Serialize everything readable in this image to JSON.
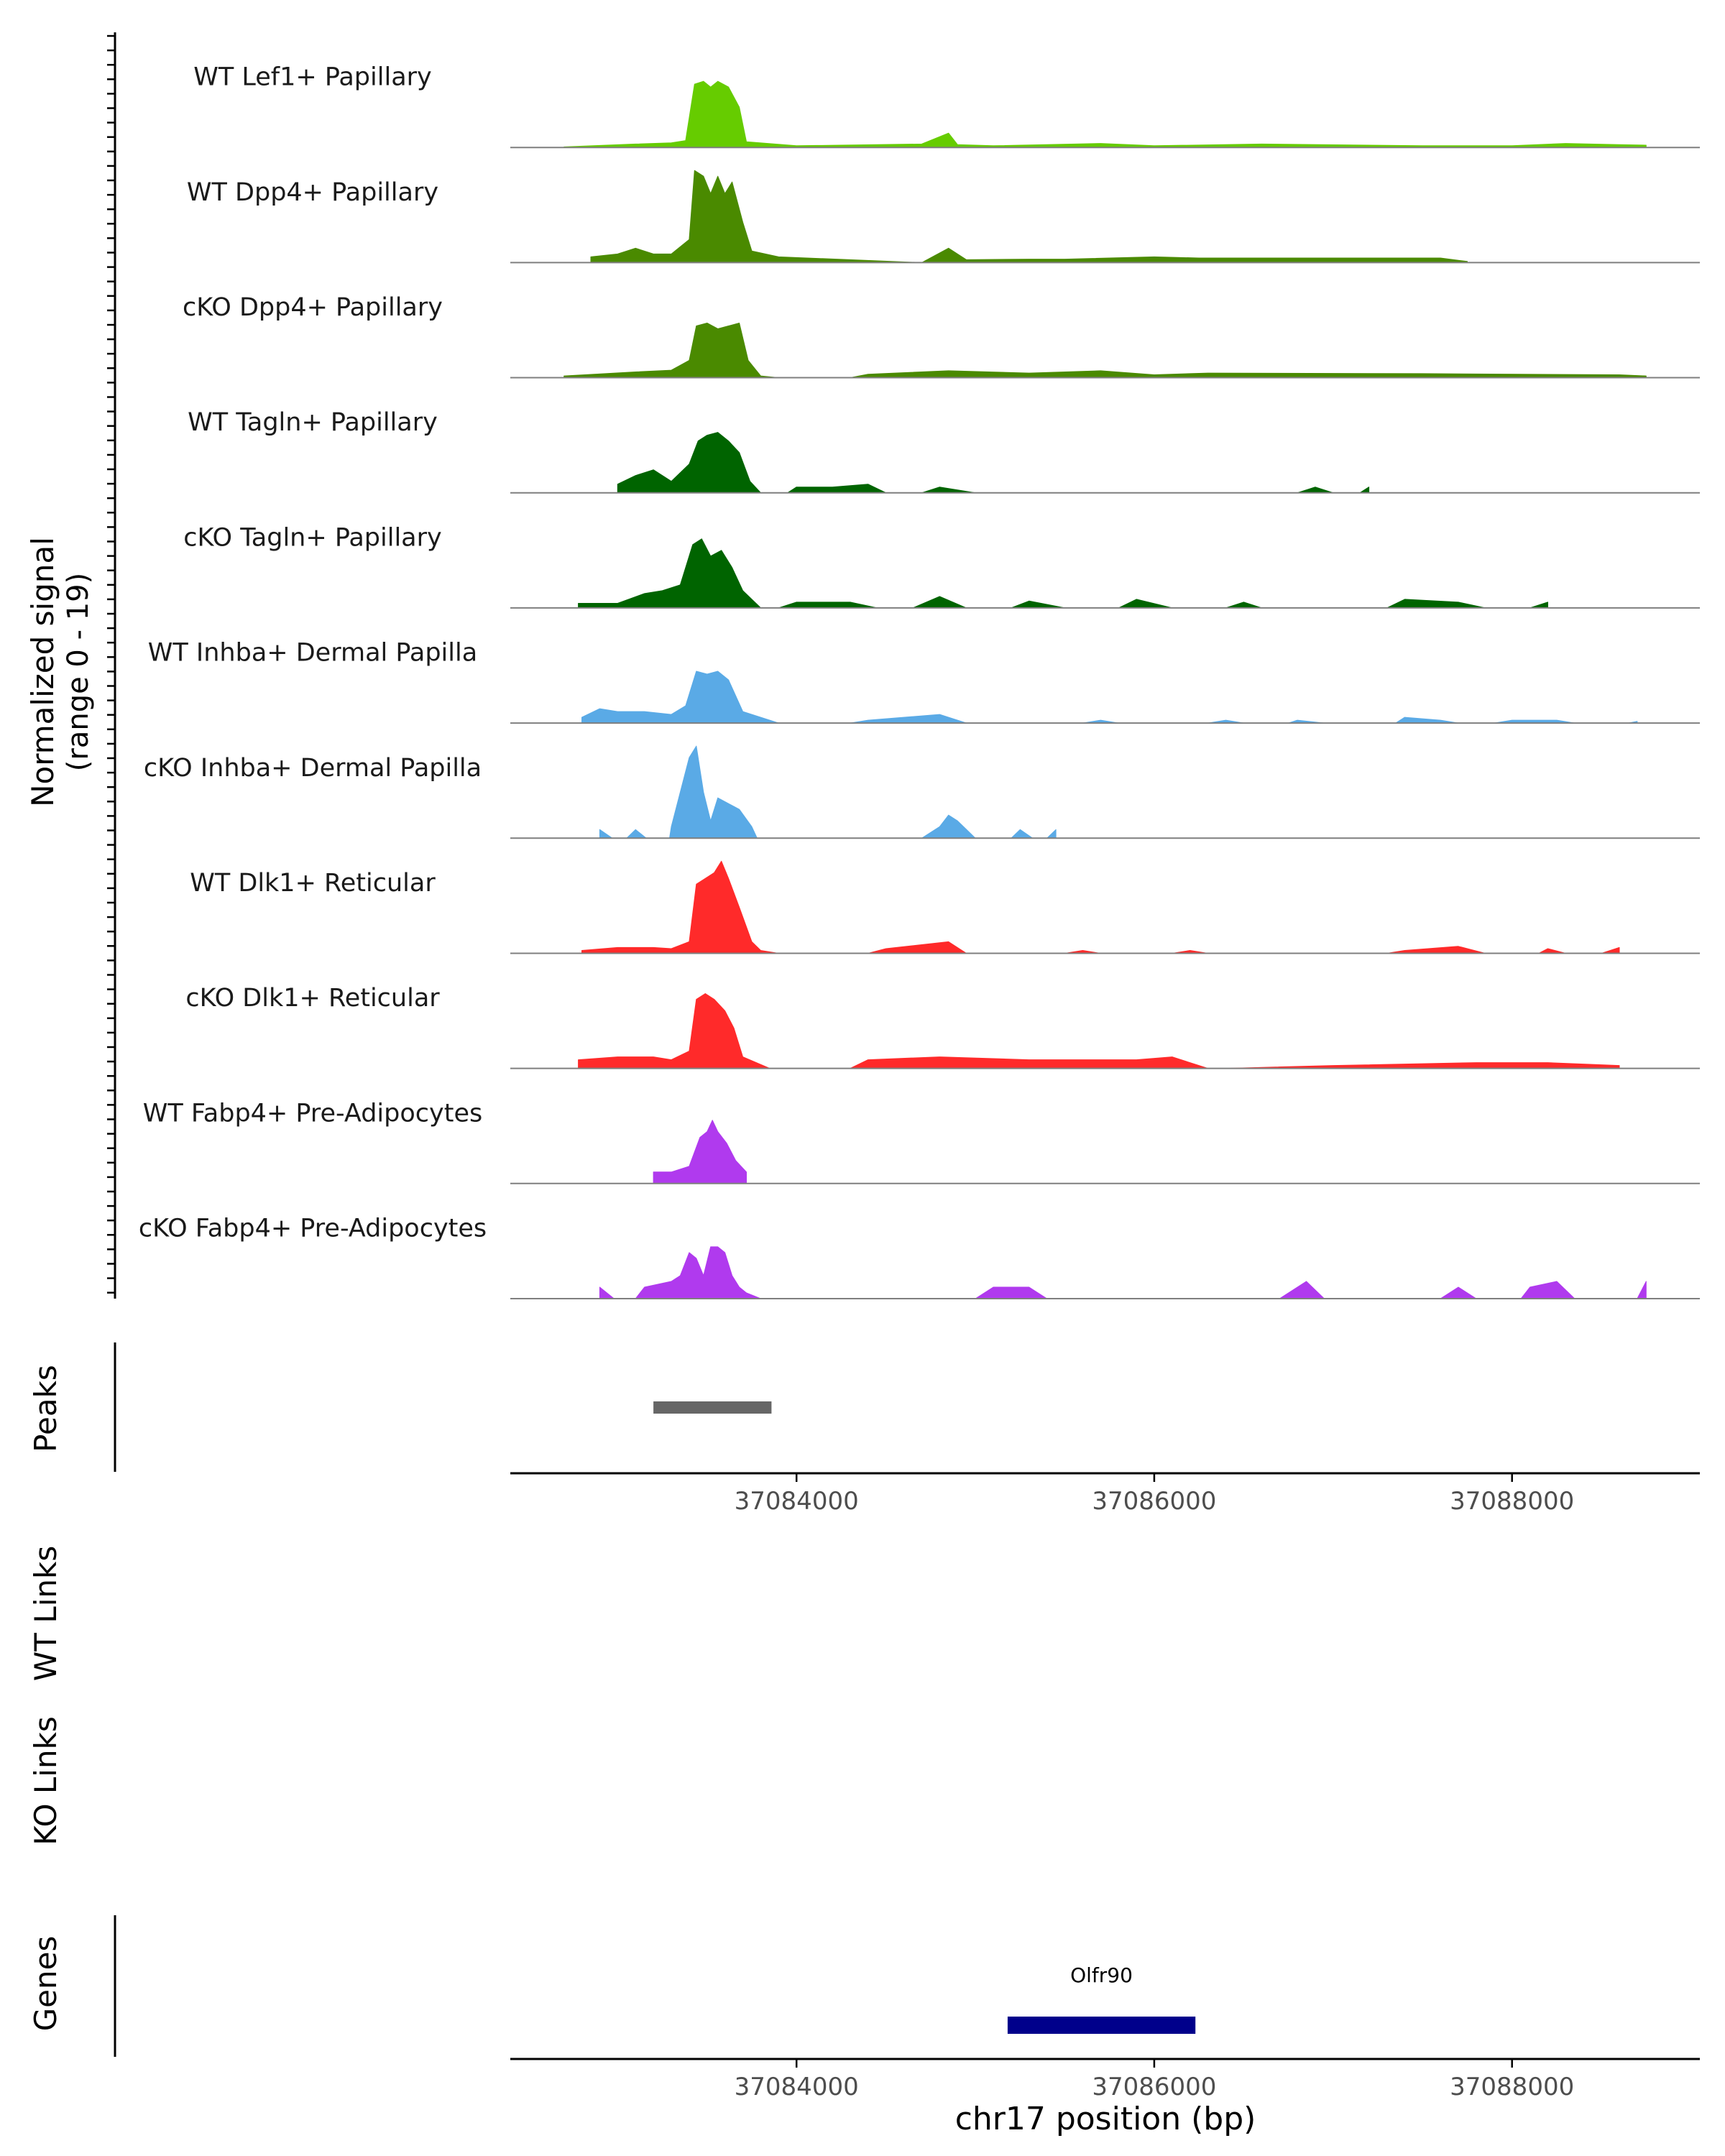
{
  "chart_data": {
    "type": "area",
    "title": "",
    "xlabel": "chr17 position (bp)",
    "xlim": [
      37082400,
      37089050
    ],
    "x_ticks": [
      37084000,
      37086000,
      37088000
    ],
    "x_tick_labels": [
      "37084000",
      "37086000",
      "37088000"
    ],
    "coverage_ylabel_line1": "Normalized signal",
    "coverage_ylabel_line2": "(range 0 - 19)",
    "ylim": [
      0,
      19
    ],
    "grid": false,
    "tracks": [
      {
        "name": "WT Lef1+ Papillary",
        "color": "#66CC00",
        "x": [
          37082700,
          37083100,
          37083300,
          37083380,
          37083430,
          37083480,
          37083520,
          37083560,
          37083620,
          37083680,
          37083720,
          37084000,
          37084700,
          37084850,
          37084900,
          37085100,
          37085700,
          37086000,
          37086600,
          37087500,
          37088000,
          37088300,
          37088600,
          37088750
        ],
        "values": [
          0.1,
          0.6,
          0.8,
          1.2,
          11,
          11.5,
          10.5,
          11.5,
          10.5,
          7,
          1,
          0.3,
          0.6,
          2.5,
          0.5,
          0.3,
          0.7,
          0.3,
          0.6,
          0.3,
          0.3,
          0.7,
          0.5,
          0.4
        ]
      },
      {
        "name": "WT Dpp4+ Papillary",
        "color": "#4A8A00",
        "x": [
          37082850,
          37083000,
          37083100,
          37083200,
          37083300,
          37083400,
          37083430,
          37083480,
          37083520,
          37083560,
          37083600,
          37083640,
          37083700,
          37083750,
          37083900,
          37084700,
          37084850,
          37084950,
          37085300,
          37085500,
          37086000,
          37086250,
          37087600,
          37087750
        ],
        "values": [
          1,
          1.5,
          2.5,
          1.5,
          1.5,
          4,
          16,
          15,
          12,
          15,
          12,
          14,
          7,
          2,
          1,
          0,
          2.5,
          0.5,
          0.6,
          0.6,
          1,
          0.8,
          0.8,
          0.2
        ]
      },
      {
        "name": "cKO Dpp4+ Papillary",
        "color": "#4A8A00",
        "x": [
          37082700,
          37083100,
          37083300,
          37083400,
          37083440,
          37083500,
          37083560,
          37083620,
          37083680,
          37083730,
          37083800,
          37084400,
          37084850,
          37085300,
          37085700,
          37086000,
          37086300,
          37087500,
          37088600,
          37088750
        ],
        "values": [
          0.3,
          1,
          1.3,
          3,
          9,
          9.5,
          8.5,
          9,
          9.5,
          3,
          0.3,
          0.6,
          1.2,
          0.8,
          1.2,
          0.5,
          0.8,
          0.7,
          0.5,
          0.3
        ],
        "gap_spans": [
          [
            37083900,
            37084300
          ]
        ]
      },
      {
        "name": "WT Tagln+ Papillary",
        "color": "#006400",
        "x": [
          37083000,
          37083100,
          37083200,
          37083300,
          37083400,
          37083450,
          37083500,
          37083560,
          37083620,
          37083680,
          37083740,
          37084000,
          37084200,
          37084400,
          37084800,
          37086900,
          37087200
        ],
        "values": [
          1.5,
          3,
          4,
          2,
          5,
          9,
          10,
          10.5,
          9,
          7,
          2,
          1,
          1,
          1.5,
          1,
          1,
          1
        ],
        "gap_spans": [
          [
            37083800,
            37083950
          ],
          [
            37084500,
            37084700
          ],
          [
            37085000,
            37086800
          ],
          [
            37087000,
            37087150
          ]
        ]
      },
      {
        "name": "cKO Tagln+ Papillary",
        "color": "#006400",
        "x": [
          37082780,
          37083000,
          37083150,
          37083250,
          37083350,
          37083420,
          37083470,
          37083520,
          37083580,
          37083640,
          37083700,
          37084000,
          37084300,
          37084800,
          37085300,
          37085900,
          37086500,
          37087400,
          37087700,
          37088200
        ],
        "values": [
          0.8,
          0.8,
          2.5,
          3,
          4,
          11,
          12,
          9,
          10,
          7,
          3,
          1,
          1,
          2,
          1.2,
          1.5,
          1,
          1.5,
          1,
          1
        ],
        "gap_spans": [
          [
            37083800,
            37083900
          ],
          [
            37084450,
            37084650
          ],
          [
            37084950,
            37085200
          ],
          [
            37085500,
            37085800
          ],
          [
            37086100,
            37086400
          ],
          [
            37086600,
            37087300
          ],
          [
            37087850,
            37088100
          ]
        ]
      },
      {
        "name": "WT Inhba+ Dermal Papilla",
        "color": "#5AAAE6",
        "x": [
          37082800,
          37082900,
          37083000,
          37083150,
          37083300,
          37083380,
          37083440,
          37083500,
          37083560,
          37083620,
          37083700,
          37083800,
          37084400,
          37084800,
          37085700,
          37086400,
          37086800,
          37087400,
          37087600,
          37088000,
          37088250,
          37088700
        ],
        "values": [
          1,
          2.5,
          2,
          2,
          1.5,
          3,
          9,
          8.5,
          9,
          7.5,
          2,
          1,
          0.5,
          1.5,
          0.5,
          0.5,
          0.5,
          1,
          0.5,
          0.5,
          0.5,
          0.3
        ],
        "gap_spans": [
          [
            37083900,
            37084300
          ],
          [
            37084950,
            37085600
          ],
          [
            37085800,
            37086300
          ],
          [
            37086500,
            37086750
          ],
          [
            37086950,
            37087350
          ],
          [
            37087700,
            37087900
          ],
          [
            37088350,
            37088650
          ]
        ]
      },
      {
        "name": "cKO Inhba+ Dermal Papilla",
        "color": "#5AAAE6",
        "x": [
          37082900,
          37083100,
          37083300,
          37083400,
          37083440,
          37083480,
          37083520,
          37083560,
          37083620,
          37083680,
          37083750,
          37084800,
          37084850,
          37084900,
          37085250,
          37085450
        ],
        "values": [
          1.5,
          1.5,
          2,
          14,
          16,
          8,
          3,
          7,
          6,
          5,
          2,
          2,
          4,
          3,
          1.5,
          1.5
        ],
        "gap_spans": [
          [
            37082970,
            37083050
          ],
          [
            37083160,
            37083290
          ],
          [
            37083780,
            37084700
          ],
          [
            37085000,
            37085200
          ],
          [
            37085320,
            37085400
          ]
        ]
      },
      {
        "name": "WT Dlk1+ Reticular",
        "color": "#FF2A2A",
        "x": [
          37082800,
          37083000,
          37083200,
          37083300,
          37083400,
          37083440,
          37083490,
          37083540,
          37083580,
          37083620,
          37083680,
          37083750,
          37083800,
          37084500,
          37084850,
          37085600,
          37086200,
          37087400,
          37087700,
          37088200,
          37088600
        ],
        "values": [
          0.5,
          1,
          1,
          0.8,
          2,
          12,
          13,
          14,
          16,
          13,
          8,
          2,
          0.5,
          0.8,
          2,
          0.5,
          0.5,
          0.5,
          1.2,
          0.8,
          1
        ],
        "gap_spans": [
          [
            37083900,
            37084400
          ],
          [
            37084950,
            37085500
          ],
          [
            37085700,
            37086100
          ],
          [
            37086300,
            37087300
          ],
          [
            37087850,
            37088150
          ],
          [
            37088300,
            37088500
          ]
        ]
      },
      {
        "name": "cKO Dlk1+ Reticular",
        "color": "#FF2A2A",
        "x": [
          37082780,
          37083000,
          37083200,
          37083300,
          37083400,
          37083440,
          37083490,
          37083540,
          37083600,
          37083650,
          37083700,
          37084400,
          37084800,
          37085300,
          37085900,
          37086100,
          37087000,
          37087800,
          37088200,
          37088600
        ],
        "values": [
          1.5,
          2,
          2,
          1.5,
          3,
          12,
          13,
          12,
          10,
          7,
          2,
          1.5,
          2,
          1.5,
          1.5,
          2,
          0.5,
          1,
          1,
          0.5
        ],
        "gap_spans": [
          [
            37083850,
            37084300
          ],
          [
            37086300,
            37086400
          ]
        ]
      },
      {
        "name": "WT Fabp4+ Pre-Adipocytes",
        "color": "#B03AEE",
        "x": [
          37083200,
          37083300,
          37083400,
          37083460,
          37083500,
          37083530,
          37083560,
          37083610,
          37083660,
          37083720
        ],
        "values": [
          2,
          2,
          3,
          8,
          9,
          11,
          9,
          7,
          4,
          2
        ]
      },
      {
        "name": "cKO Fabp4+ Pre-Adipocytes",
        "color": "#B03AEE",
        "x": [
          37082900,
          37083150,
          37083300,
          37083350,
          37083400,
          37083440,
          37083480,
          37083520,
          37083560,
          37083600,
          37083640,
          37083680,
          37083720,
          37085100,
          37085300,
          37086850,
          37087700,
          37088100,
          37088250,
          37088750
        ],
        "values": [
          2,
          2,
          3,
          4,
          8,
          7,
          4,
          9,
          9,
          8,
          4,
          2,
          1,
          2,
          2,
          3,
          2,
          2,
          3,
          3
        ],
        "gap_spans": [
          [
            37082980,
            37083100
          ],
          [
            37083800,
            37085000
          ],
          [
            37085400,
            37086700
          ],
          [
            37086950,
            37087600
          ],
          [
            37087800,
            37088050
          ],
          [
            37088350,
            37088700
          ]
        ]
      }
    ],
    "peaks": {
      "ylabel": "Peaks",
      "regions": [
        [
          37083200,
          37083860
        ]
      ]
    },
    "links": [
      {
        "ylabel": "WT Links",
        "links": []
      },
      {
        "ylabel": "KO Links",
        "links": []
      }
    ],
    "genes": {
      "ylabel": "Genes",
      "items": [
        {
          "name": "Olfr90",
          "start": 37085180,
          "end": 37086230,
          "color": "#00008B"
        }
      ]
    },
    "peak_color": "#666666"
  }
}
